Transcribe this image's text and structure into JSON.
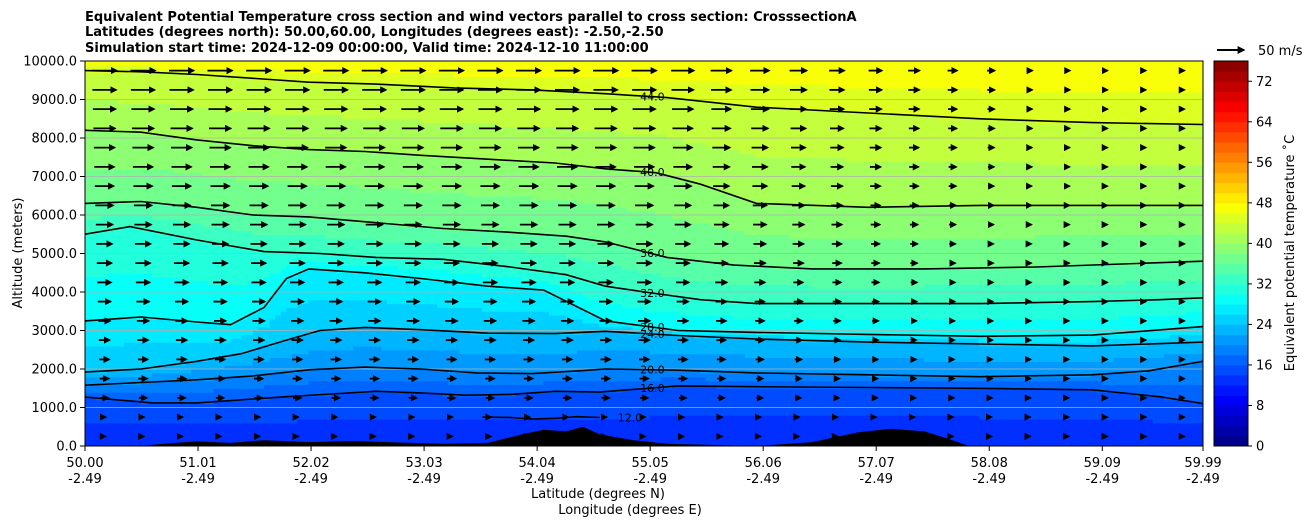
{
  "chart_data": {
    "type": "contour",
    "title_lines": [
      "Equivalent Potential Temperature cross section and wind vectors parallel to cross section: CrosssectionA",
      "Latitudes (degrees north): 50.00,60.00, Longitudes (degrees east): -2.50,-2.50",
      "Simulation start time: 2024-12-09 00:00:00, Valid time: 2024-12-10 11:00:00"
    ],
    "xlabel": "Latitude (degrees N)",
    "xlabel2": "Longitude (degrees E)",
    "ylabel": "Altitude (meters)",
    "xlim": [
      50.0,
      59.99
    ],
    "ylim": [
      0,
      10000
    ],
    "x_ticks": [
      {
        "lat": 50.0,
        "label": "50.00",
        "lon_label": "-2.49"
      },
      {
        "lat": 51.01,
        "label": "51.01",
        "lon_label": "-2.49"
      },
      {
        "lat": 52.02,
        "label": "52.02",
        "lon_label": "-2.49"
      },
      {
        "lat": 53.03,
        "label": "53.03",
        "lon_label": "-2.49"
      },
      {
        "lat": 54.04,
        "label": "54.04",
        "lon_label": "-2.49"
      },
      {
        "lat": 55.05,
        "label": "55.05",
        "lon_label": "-2.49"
      },
      {
        "lat": 56.06,
        "label": "56.06",
        "lon_label": "-2.49"
      },
      {
        "lat": 57.07,
        "label": "57.07",
        "lon_label": "-2.49"
      },
      {
        "lat": 58.08,
        "label": "58.08",
        "lon_label": "-2.49"
      },
      {
        "lat": 59.09,
        "label": "59.09",
        "lon_label": "-2.49"
      },
      {
        "lat": 59.99,
        "label": "59.99",
        "lon_label": "-2.49"
      }
    ],
    "y_ticks": [
      {
        "value": 0,
        "label": "0.0"
      },
      {
        "value": 1000,
        "label": "1000.0"
      },
      {
        "value": 2000,
        "label": "2000.0"
      },
      {
        "value": 3000,
        "label": "3000.0"
      },
      {
        "value": 4000,
        "label": "4000.0"
      },
      {
        "value": 5000,
        "label": "5000.0"
      },
      {
        "value": 6000,
        "label": "6000.0"
      },
      {
        "value": 7000,
        "label": "7000.0"
      },
      {
        "value": 8000,
        "label": "8000.0"
      },
      {
        "value": 9000,
        "label": "9000.0"
      },
      {
        "value": 10000,
        "label": "10000.0"
      }
    ],
    "grid": "horizontal",
    "colorbar": {
      "label": "Equivalent potential temperature ˚C",
      "min": 0,
      "max": 76,
      "step": 2,
      "ticks": [
        {
          "value": 0,
          "label": "0"
        },
        {
          "value": 8,
          "label": "8"
        },
        {
          "value": 16,
          "label": "16"
        },
        {
          "value": 24,
          "label": "24"
        },
        {
          "value": 32,
          "label": "32"
        },
        {
          "value": 40,
          "label": "40"
        },
        {
          "value": 48,
          "label": "48"
        },
        {
          "value": 56,
          "label": "56"
        },
        {
          "value": 64,
          "label": "64"
        },
        {
          "value": 72,
          "label": "72"
        }
      ],
      "colormap": "jet"
    },
    "quiver_key": {
      "label": "50 m/s",
      "speed": 50
    },
    "contours": [
      {
        "level": 12,
        "label": "12.0",
        "points": [
          [
            53.55,
            750
          ],
          [
            53.8,
            740
          ],
          [
            54.0,
            700
          ],
          [
            54.2,
            720
          ],
          [
            54.4,
            760
          ],
          [
            54.6,
            740
          ]
        ]
      },
      {
        "level": 16,
        "label": "16.0",
        "points": [
          [
            50.0,
            1270
          ],
          [
            50.6,
            1120
          ],
          [
            51.0,
            1120
          ],
          [
            51.4,
            1200
          ],
          [
            51.8,
            1280
          ],
          [
            52.2,
            1350
          ],
          [
            52.6,
            1420
          ],
          [
            53.0,
            1380
          ],
          [
            53.4,
            1320
          ],
          [
            53.8,
            1340
          ],
          [
            54.2,
            1420
          ],
          [
            54.6,
            1400
          ],
          [
            55.3,
            1560
          ],
          [
            56.0,
            1540
          ],
          [
            57.0,
            1520
          ],
          [
            58.0,
            1500
          ],
          [
            59.0,
            1460
          ],
          [
            59.6,
            1280
          ],
          [
            59.99,
            1100
          ]
        ]
      },
      {
        "level": 20,
        "label": "20.0",
        "points": [
          [
            50.0,
            1580
          ],
          [
            50.5,
            1650
          ],
          [
            51.0,
            1720
          ],
          [
            51.5,
            1820
          ],
          [
            52.0,
            1980
          ],
          [
            52.5,
            2050
          ],
          [
            53.0,
            2000
          ],
          [
            53.5,
            1900
          ],
          [
            54.0,
            1880
          ],
          [
            54.4,
            1950
          ],
          [
            54.65,
            2000
          ],
          [
            55.3,
            1970
          ],
          [
            56.0,
            1900
          ],
          [
            57.0,
            1850
          ],
          [
            58.0,
            1800
          ],
          [
            59.0,
            1850
          ],
          [
            59.5,
            1950
          ],
          [
            59.99,
            2200
          ]
        ]
      },
      {
        "level": 24,
        "label": "24.0",
        "points": [
          [
            50.0,
            1920
          ],
          [
            50.5,
            2000
          ],
          [
            51.0,
            2200
          ],
          [
            51.4,
            2400
          ],
          [
            51.8,
            2750
          ],
          [
            52.1,
            3000
          ],
          [
            52.5,
            3080
          ],
          [
            53.0,
            3020
          ],
          [
            53.6,
            2930
          ],
          [
            54.2,
            2920
          ],
          [
            54.65,
            2980
          ],
          [
            55.3,
            2870
          ],
          [
            56.0,
            2780
          ],
          [
            57.0,
            2700
          ],
          [
            58.0,
            2650
          ],
          [
            59.0,
            2600
          ],
          [
            59.99,
            2700
          ]
        ]
      },
      {
        "level": 28,
        "label": "28.0",
        "points": [
          [
            50.0,
            3250
          ],
          [
            50.5,
            3350
          ],
          [
            51.0,
            3220
          ],
          [
            51.3,
            3150
          ],
          [
            51.6,
            3600
          ],
          [
            51.8,
            4350
          ],
          [
            52.0,
            4600
          ],
          [
            52.5,
            4500
          ],
          [
            53.0,
            4350
          ],
          [
            53.6,
            4150
          ],
          [
            54.1,
            4050
          ],
          [
            54.65,
            3250
          ],
          [
            55.3,
            3000
          ],
          [
            56.0,
            2950
          ],
          [
            57.0,
            2900
          ],
          [
            58.0,
            2850
          ],
          [
            59.0,
            2880
          ],
          [
            59.99,
            3100
          ]
        ]
      },
      {
        "level": 32,
        "label": "32.0",
        "points": [
          [
            50.0,
            5500
          ],
          [
            50.4,
            5700
          ],
          [
            51.0,
            5350
          ],
          [
            51.6,
            5050
          ],
          [
            52.1,
            5000
          ],
          [
            52.6,
            4900
          ],
          [
            53.2,
            4850
          ],
          [
            53.8,
            4650
          ],
          [
            54.3,
            4450
          ],
          [
            54.65,
            4150
          ],
          [
            55.0,
            4000
          ],
          [
            55.5,
            3800
          ],
          [
            56.0,
            3700
          ],
          [
            57.0,
            3700
          ],
          [
            58.0,
            3700
          ],
          [
            59.0,
            3750
          ],
          [
            59.6,
            3800
          ],
          [
            59.99,
            3850
          ]
        ]
      },
      {
        "level": 36,
        "label": "36.0",
        "points": [
          [
            50.0,
            6300
          ],
          [
            50.5,
            6350
          ],
          [
            51.0,
            6200
          ],
          [
            51.5,
            6000
          ],
          [
            52.0,
            5950
          ],
          [
            52.6,
            5800
          ],
          [
            53.2,
            5650
          ],
          [
            53.8,
            5550
          ],
          [
            54.3,
            5450
          ],
          [
            54.65,
            5300
          ],
          [
            55.2,
            4900
          ],
          [
            55.8,
            4700
          ],
          [
            56.5,
            4600
          ],
          [
            57.5,
            4600
          ],
          [
            58.5,
            4650
          ],
          [
            59.5,
            4750
          ],
          [
            59.99,
            4800
          ]
        ]
      },
      {
        "level": 40,
        "label": "40.0",
        "points": [
          [
            50.0,
            8200
          ],
          [
            50.5,
            8150
          ],
          [
            51.0,
            7950
          ],
          [
            51.5,
            7800
          ],
          [
            52.0,
            7700
          ],
          [
            52.5,
            7650
          ],
          [
            53.0,
            7550
          ],
          [
            53.6,
            7450
          ],
          [
            54.2,
            7350
          ],
          [
            54.65,
            7200
          ],
          [
            55.1,
            7100
          ],
          [
            55.5,
            6800
          ],
          [
            56.0,
            6300
          ],
          [
            57.0,
            6200
          ],
          [
            58.0,
            6250
          ],
          [
            59.0,
            6250
          ],
          [
            59.99,
            6250
          ]
        ]
      },
      {
        "level": 44,
        "label": "44.0",
        "points": [
          [
            50.0,
            9750
          ],
          [
            50.5,
            9720
          ],
          [
            51.0,
            9650
          ],
          [
            51.5,
            9550
          ],
          [
            52.0,
            9450
          ],
          [
            52.6,
            9400
          ],
          [
            53.3,
            9300
          ],
          [
            54.0,
            9250
          ],
          [
            54.65,
            9150
          ],
          [
            55.2,
            9050
          ],
          [
            56.0,
            8800
          ],
          [
            57.0,
            8650
          ],
          [
            58.0,
            8500
          ],
          [
            59.0,
            8400
          ],
          [
            59.99,
            8350
          ]
        ]
      }
    ],
    "terrain": [
      [
        50.0,
        0
      ],
      [
        50.5,
        0
      ],
      [
        50.7,
        60
      ],
      [
        51.0,
        120
      ],
      [
        51.3,
        80
      ],
      [
        51.6,
        150
      ],
      [
        52.0,
        100
      ],
      [
        52.4,
        130
      ],
      [
        52.8,
        90
      ],
      [
        53.2,
        60
      ],
      [
        53.6,
        80
      ],
      [
        53.9,
        300
      ],
      [
        54.1,
        420
      ],
      [
        54.3,
        380
      ],
      [
        54.45,
        500
      ],
      [
        54.6,
        300
      ],
      [
        54.9,
        150
      ],
      [
        55.2,
        60
      ],
      [
        56.0,
        0
      ],
      [
        56.5,
        100
      ],
      [
        56.9,
        350
      ],
      [
        57.2,
        450
      ],
      [
        57.5,
        380
      ],
      [
        57.7,
        200
      ],
      [
        57.9,
        0
      ],
      [
        58.5,
        0
      ],
      [
        59.2,
        0
      ],
      [
        59.99,
        0
      ]
    ]
  }
}
